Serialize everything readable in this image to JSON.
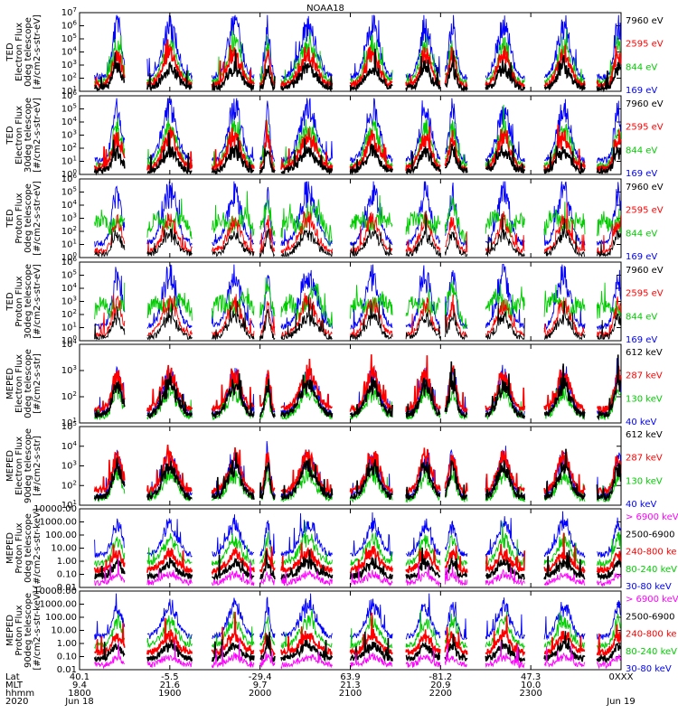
{
  "title": "NOAA18",
  "colors": {
    "blue": "#0000ff",
    "red": "#ff0000",
    "green": "#00cc00",
    "black": "#000000",
    "magenta": "#ff00ff"
  },
  "panels": [
    {
      "ylabel": [
        "TED",
        "Electron Flux",
        "0deg telescope",
        "[#/cm2-s-str-eV]"
      ],
      "yticks": [
        "10^1",
        "10^2",
        "10^3",
        "10^4",
        "10^5",
        "10^6",
        "10^7"
      ],
      "legend": [
        {
          "label": "7960 eV",
          "color": "black"
        },
        {
          "label": "2595 eV",
          "color": "red"
        },
        {
          "label": "844 eV",
          "color": "green"
        },
        {
          "label": "169 eV",
          "color": "blue"
        }
      ]
    },
    {
      "ylabel": [
        "TED",
        "Electron Flux",
        "30deg telescope",
        "[#/cm2-s-str-eV]"
      ],
      "yticks": [
        "10^0",
        "10^1",
        "10^2",
        "10^3",
        "10^4",
        "10^5",
        "10^6"
      ],
      "legend": [
        {
          "label": "7960 eV",
          "color": "black"
        },
        {
          "label": "2595 eV",
          "color": "red"
        },
        {
          "label": "844 eV",
          "color": "green"
        },
        {
          "label": "169 eV",
          "color": "blue"
        }
      ]
    },
    {
      "ylabel": [
        "TED",
        "Proton Flux",
        "0deg telescope",
        "[#/cm2-s-str-eV]"
      ],
      "yticks": [
        "10^0",
        "10^1",
        "10^2",
        "10^3",
        "10^4",
        "10^5",
        "10^6"
      ],
      "legend": [
        {
          "label": "7960 eV",
          "color": "black"
        },
        {
          "label": "2595 eV",
          "color": "red"
        },
        {
          "label": "844 eV",
          "color": "green"
        },
        {
          "label": "169 eV",
          "color": "blue"
        }
      ]
    },
    {
      "ylabel": [
        "TED",
        "Proton Flux",
        "30deg telescope",
        "[#/cm2-s-str-eV]"
      ],
      "yticks": [
        "10^0",
        "10^1",
        "10^2",
        "10^3",
        "10^4",
        "10^5",
        "10^6"
      ],
      "legend": [
        {
          "label": "7960 eV",
          "color": "black"
        },
        {
          "label": "2595 eV",
          "color": "red"
        },
        {
          "label": "844 eV",
          "color": "green"
        },
        {
          "label": "169 eV",
          "color": "blue"
        }
      ]
    },
    {
      "ylabel": [
        "MEPED",
        "Electron Flux",
        "0deg telescope",
        "[#/cm2-s-str]"
      ],
      "yticks": [
        "10^1",
        "10^2",
        "10^3",
        "10^4"
      ],
      "legend": [
        {
          "label": "612 keV",
          "color": "black"
        },
        {
          "label": "287 keV",
          "color": "red"
        },
        {
          "label": "130 keV",
          "color": "green"
        },
        {
          "label": "40 keV",
          "color": "blue"
        }
      ]
    },
    {
      "ylabel": [
        "MEPED",
        "Electron Flux",
        "90deg telescope",
        "[#/cm2-s-str]"
      ],
      "yticks": [
        "10^1",
        "10^2",
        "10^3",
        "10^4",
        "10^5"
      ],
      "legend": [
        {
          "label": "612 keV",
          "color": "black"
        },
        {
          "label": "287 keV",
          "color": "red"
        },
        {
          "label": "130 keV",
          "color": "green"
        },
        {
          "label": "40 keV",
          "color": "blue"
        }
      ]
    },
    {
      "ylabel": [
        "MEPED",
        "Proton Flux",
        "0deg telescope",
        "[#/cm2-s-str-keV]"
      ],
      "yticks": [
        "0.01",
        "0.10",
        "1.00",
        "10.00",
        "100.00",
        "1000.00",
        "10000.00"
      ],
      "legend": [
        {
          "label": "> 6900 keV",
          "color": "magenta"
        },
        {
          "label": "2500-6900",
          "color": "black"
        },
        {
          "label": "240-800 ke",
          "color": "red"
        },
        {
          "label": "80-240 keV",
          "color": "green"
        },
        {
          "label": "30-80 keV",
          "color": "blue"
        }
      ]
    },
    {
      "ylabel": [
        "MEPED",
        "Proton Flux",
        "90deg telescope",
        "[#/cm2-s-str-keV]"
      ],
      "yticks": [
        "0.01",
        "0.10",
        "1.00",
        "10.00",
        "100.00",
        "1000.00",
        "10000.00"
      ],
      "legend": [
        {
          "label": "> 6900 keV",
          "color": "magenta"
        },
        {
          "label": "2500-6900",
          "color": "black"
        },
        {
          "label": "240-800 ke",
          "color": "red"
        },
        {
          "label": "80-240 keV",
          "color": "green"
        },
        {
          "label": "30-80 keV",
          "color": "blue"
        }
      ]
    }
  ],
  "footer": {
    "row_labels": [
      "Lat",
      "MLT",
      "hhmm",
      "2020"
    ],
    "columns": [
      {
        "lat": "40.1",
        "mlt": "9.4",
        "hhmm": "1800",
        "date": "Jun 18"
      },
      {
        "lat": "-5.5",
        "mlt": "21.6",
        "hhmm": "1900",
        "date": ""
      },
      {
        "lat": "-29.4",
        "mlt": "9.7",
        "hhmm": "2000",
        "date": ""
      },
      {
        "lat": "63.9",
        "mlt": "21.3",
        "hhmm": "2100",
        "date": ""
      },
      {
        "lat": "-81.2",
        "mlt": "20.9",
        "hhmm": "2200",
        "date": ""
      },
      {
        "lat": "47.3",
        "mlt": "10.0",
        "hhmm": "2300",
        "date": ""
      },
      {
        "lat": "0XXX",
        "mlt": "",
        "hhmm": "",
        "date": "Jun 19"
      }
    ]
  },
  "chart_data": {
    "type": "line",
    "title": "NOAA18",
    "x_range": [
      "2020-06-18 18:00",
      "2020-06-19 00:00"
    ],
    "y_scale": "log",
    "passes": [
      {
        "start": "18:10",
        "end": "18:30",
        "peak": "18:25"
      },
      {
        "start": "18:45",
        "end": "19:15",
        "peak": "19:00"
      },
      {
        "start": "19:28",
        "end": "19:56",
        "peak": "19:43"
      },
      {
        "start": "20:00",
        "end": "20:10",
        "peak": "20:05"
      },
      {
        "start": "20:14",
        "end": "20:48",
        "peak": "20:32"
      },
      {
        "start": "21:00",
        "end": "21:28",
        "peak": "21:15"
      },
      {
        "start": "21:37",
        "end": "22:00",
        "peak": "21:50"
      },
      {
        "start": "22:03",
        "end": "22:18",
        "peak": "22:08"
      },
      {
        "start": "22:30",
        "end": "22:56",
        "peak": "22:42"
      },
      {
        "start": "23:09",
        "end": "23:36",
        "peak": "23:22"
      },
      {
        "start": "23:44",
        "end": "00:00",
        "peak": "23:58"
      }
    ]
  }
}
